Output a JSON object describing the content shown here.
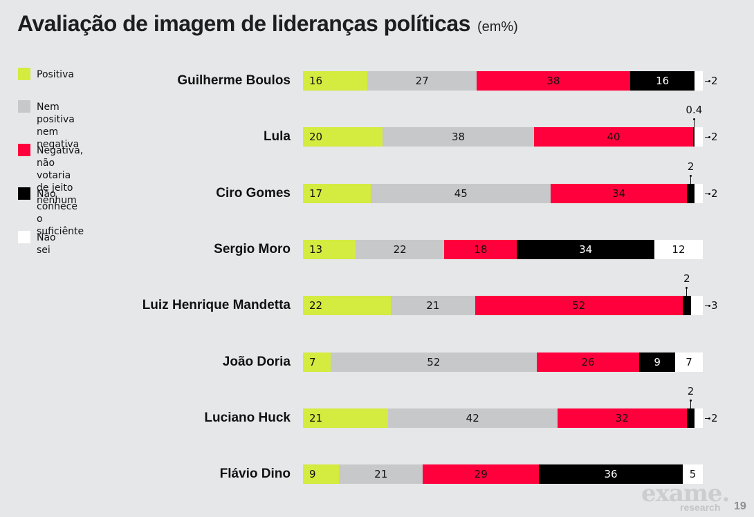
{
  "chart_data": {
    "type": "bar",
    "orientation": "horizontal",
    "stacked": true,
    "title": "Avaliação de imagem de lideranças políticas",
    "subtitle": "(em%)",
    "legend_position": "left",
    "categories": [
      "Guilherme Boulos",
      "Lula",
      "Ciro Gomes",
      "Sergio Moro",
      "Luiz Henrique Mandetta",
      "João Doria",
      "Luciano Huck",
      "Flávio Dino"
    ],
    "series": [
      {
        "name": "Positiva",
        "color": "#d4eb3f",
        "values": [
          16,
          20,
          17,
          13,
          22,
          7,
          21,
          9
        ]
      },
      {
        "name": "Nem positiva nem negativa",
        "color": "#c7c8ca",
        "values": [
          27,
          38,
          45,
          22,
          21,
          52,
          42,
          21
        ]
      },
      {
        "name": "Negativa, não votaria de jeito nenhum",
        "color": "#ff003c",
        "values": [
          38,
          40,
          34,
          18,
          52,
          26,
          32,
          29
        ]
      },
      {
        "name": "Não conhece o suficiênte",
        "color": "#000000",
        "values": [
          16,
          0.4,
          2,
          34,
          2,
          9,
          2,
          36
        ]
      },
      {
        "name": "Não sei",
        "color": "#ffffff",
        "values": [
          2,
          2,
          2,
          12,
          3,
          7,
          2,
          5
        ]
      }
    ],
    "xlabel": "",
    "ylabel": "",
    "grid": false
  },
  "legend": {
    "items": [
      {
        "label": "Positiva",
        "color": "#d4eb3f"
      },
      {
        "label": "Nem positiva\nnem negativa",
        "color": "#c7c8ca"
      },
      {
        "label": "Negativa, não votaria\nde jeito nenhum",
        "color": "#ff003c"
      },
      {
        "label": "Não conhece\no suficiênte",
        "color": "#000000"
      },
      {
        "label": "Não sei",
        "color": "#ffffff"
      }
    ]
  },
  "footer": {
    "logo": "exame.",
    "logo_sub": "research",
    "page_number": "19"
  }
}
